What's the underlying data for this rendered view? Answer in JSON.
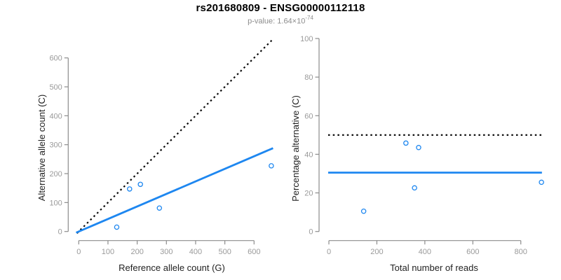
{
  "header": {
    "title": "rs201680809 - ENSG00000112118",
    "subtitle_prefix": "p-value: 1.64×10",
    "subtitle_exponent": "-74"
  },
  "colors": {
    "accent_blue": "#1E87F0",
    "line_black": "#0a0a0a",
    "axis_gray": "#8c8c8c",
    "tick_label_gray": "#9a9a9a",
    "title_black": "#000000",
    "subtitle_gray": "#8c8c8c"
  },
  "chart_data": [
    {
      "type": "scatter",
      "panel": "left",
      "xlabel": "Reference allele count (G)",
      "ylabel": "Alternative allele count (C)",
      "xlim": [
        0,
        600
      ],
      "ylim": [
        0,
        600
      ],
      "xticks": [
        0,
        100,
        200,
        300,
        400,
        500,
        600
      ],
      "yticks": [
        0,
        100,
        200,
        300,
        400,
        500,
        600
      ],
      "points": [
        [
          130,
          15
        ],
        [
          174,
          147
        ],
        [
          211,
          163
        ],
        [
          276,
          81
        ],
        [
          659,
          227
        ]
      ],
      "lines": [
        {
          "name": "identity-line",
          "style": "dotted",
          "color_key": "line_black",
          "points": [
            [
              -6,
              -6
            ],
            [
              663,
              663
            ]
          ]
        },
        {
          "name": "fit-line",
          "style": "solid",
          "color_key": "accent_blue",
          "points": [
            [
              -9,
              -4
            ],
            [
              665,
              288
            ]
          ]
        }
      ],
      "grid": false,
      "legend": null
    },
    {
      "type": "scatter",
      "panel": "right",
      "xlabel": "Total number of reads",
      "ylabel": "Percentage alternative (C)",
      "xlim": [
        0,
        800
      ],
      "ylim": [
        0,
        100
      ],
      "xticks": [
        0,
        200,
        400,
        600,
        800
      ],
      "yticks": [
        0,
        20,
        40,
        60,
        80,
        100
      ],
      "points": [
        [
          145,
          10.5
        ],
        [
          321,
          45.8
        ],
        [
          374,
          43.5
        ],
        [
          357,
          22.6
        ],
        [
          886,
          25.5
        ]
      ],
      "lines": [
        {
          "name": "reference-line-50pct",
          "style": "dotted",
          "color_key": "line_black",
          "points": [
            [
              -3,
              50
            ],
            [
              888,
              50
            ]
          ]
        },
        {
          "name": "fit-line",
          "style": "solid",
          "color_key": "accent_blue",
          "points": [
            [
              -3,
              30.5
            ],
            [
              888,
              30.5
            ]
          ]
        }
      ],
      "grid": false,
      "legend": null
    }
  ]
}
